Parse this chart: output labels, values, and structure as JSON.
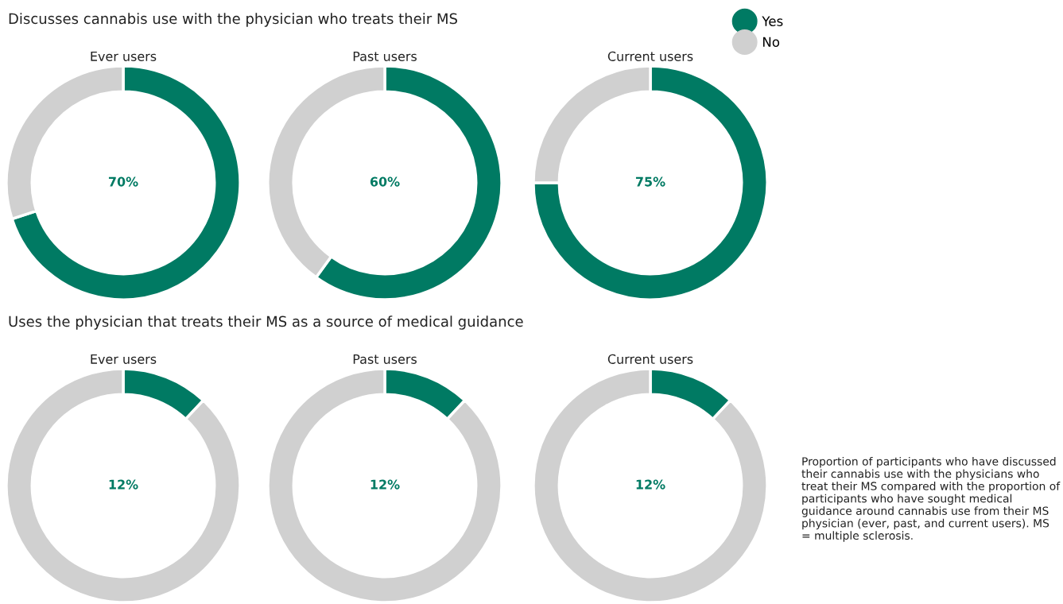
{
  "chart_data": [
    {
      "type": "donut",
      "title": "Ever users",
      "annotations": [
        "Discusses cannabis use with the physician who treats their MS"
      ],
      "categories": [
        "Yes",
        "No"
      ],
      "values": [
        70,
        30
      ],
      "colors": [
        "#007a63",
        "#d0d0d0"
      ],
      "value_labels": [
        "70%",
        null
      ],
      "legend": "top right"
    },
    {
      "type": "donut",
      "title": "Past users",
      "categories": [
        null,
        null
      ],
      "values": [
        60,
        40
      ],
      "colors": [
        "#007a63",
        "#d0d0d0"
      ],
      "value_labels": [
        "60%",
        null
      ]
    },
    {
      "type": "donut",
      "title": "Current users",
      "categories": [
        null,
        null
      ],
      "values": [
        75,
        25
      ],
      "colors": [
        "#007a63",
        "#d0d0d0"
      ],
      "value_labels": [
        "75%",
        null
      ]
    },
    {
      "type": "donut",
      "title": "Ever users",
      "annotations": [
        "Uses the physician that treats their MS as a source of medical guidance"
      ],
      "categories": [
        null,
        null
      ],
      "values": [
        12,
        88
      ],
      "colors": [
        "#007a63",
        "#d0d0d0"
      ],
      "value_labels": [
        "12%",
        null
      ]
    },
    {
      "type": "donut",
      "title": "Past users",
      "categories": [
        null,
        null
      ],
      "values": [
        12,
        88
      ],
      "colors": [
        "#007a63",
        "#d0d0d0"
      ],
      "value_labels": [
        "12%",
        null
      ]
    },
    {
      "type": "donut",
      "title": "Current users",
      "annotations": [
        "Proportion of participants who have discussed their cannabis use with the physicians who treat their MS compared with the proportion of participants who have sought medical guidance around cannabis use from their MS physician (ever, past, and current users). MS = multiple sclerosis."
      ],
      "categories": [
        null,
        null
      ],
      "values": [
        12,
        88
      ],
      "colors": [
        "#007a63",
        "#d0d0d0"
      ],
      "value_labels": [
        "12%",
        null
      ]
    }
  ]
}
